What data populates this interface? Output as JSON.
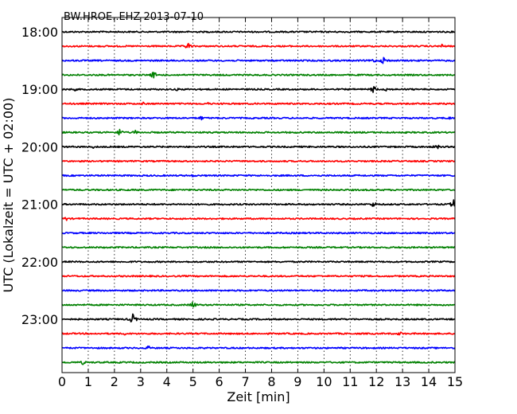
{
  "chart_data": {
    "type": "line",
    "title": "BW.HROE..EHZ 2013-07-10",
    "xlabel": "Zeit  [min]",
    "ylabel": "UTC (Lokalzeit = UTC + 02:00)",
    "xlim": [
      0,
      15
    ],
    "x_ticks": [
      "0",
      "1",
      "2",
      "3",
      "4",
      "5",
      "6",
      "7",
      "8",
      "9",
      "10",
      "11",
      "12",
      "13",
      "14",
      "15"
    ],
    "y_tick_labels": [
      "18:00",
      "19:00",
      "20:00",
      "21:00",
      "22:00",
      "23:00"
    ],
    "grid": "vertical dotted",
    "color_cycle": [
      "#000000",
      "#ff0000",
      "#0000ff",
      "#008000"
    ],
    "traces": [
      {
        "start": "18:00",
        "color": "#000000",
        "events": []
      },
      {
        "start": "18:15",
        "color": "#ff0000",
        "events": [
          {
            "t": 4.8,
            "amp": 5
          },
          {
            "t": 14.5,
            "amp": 3
          }
        ]
      },
      {
        "start": "18:30",
        "color": "#0000ff",
        "events": [
          {
            "t": 12.3,
            "amp": 6
          },
          {
            "t": 11.9,
            "amp": 3
          }
        ]
      },
      {
        "start": "18:45",
        "color": "#008000",
        "events": [
          {
            "t": 3.5,
            "amp": 5
          }
        ]
      },
      {
        "start": "19:00",
        "color": "#000000",
        "events": [
          {
            "t": 11.9,
            "amp": 5
          },
          {
            "t": 12.4,
            "amp": 3
          },
          {
            "t": 0.5,
            "amp": 2
          },
          {
            "t": 4.4,
            "amp": 2
          }
        ]
      },
      {
        "start": "19:15",
        "color": "#ff0000",
        "events": [
          {
            "t": 3.1,
            "amp": 2
          },
          {
            "t": 5.6,
            "amp": 2
          }
        ]
      },
      {
        "start": "19:30",
        "color": "#0000ff",
        "events": [
          {
            "t": 5.3,
            "amp": 3
          },
          {
            "t": 14.8,
            "amp": 2
          }
        ]
      },
      {
        "start": "19:45",
        "color": "#008000",
        "events": [
          {
            "t": 2.2,
            "amp": 5
          },
          {
            "t": 2.8,
            "amp": 3
          }
        ]
      },
      {
        "start": "20:00",
        "color": "#000000",
        "events": [
          {
            "t": 14.3,
            "amp": 4
          },
          {
            "t": 1.2,
            "amp": 2
          }
        ]
      },
      {
        "start": "20:15",
        "color": "#ff0000",
        "events": []
      },
      {
        "start": "20:30",
        "color": "#0000ff",
        "events": [
          {
            "t": 5.0,
            "amp": 2
          }
        ]
      },
      {
        "start": "20:45",
        "color": "#008000",
        "events": []
      },
      {
        "start": "21:00",
        "color": "#000000",
        "events": [
          {
            "t": 11.9,
            "amp": 4
          },
          {
            "t": 14.95,
            "amp": 6
          }
        ]
      },
      {
        "start": "21:15",
        "color": "#ff0000",
        "events": [
          {
            "t": 0.15,
            "amp": 3
          }
        ]
      },
      {
        "start": "21:30",
        "color": "#0000ff",
        "events": []
      },
      {
        "start": "21:45",
        "color": "#008000",
        "events": []
      },
      {
        "start": "22:00",
        "color": "#000000",
        "events": []
      },
      {
        "start": "22:15",
        "color": "#ff0000",
        "events": []
      },
      {
        "start": "22:30",
        "color": "#0000ff",
        "events": []
      },
      {
        "start": "22:45",
        "color": "#008000",
        "events": [
          {
            "t": 5.0,
            "amp": 5
          }
        ]
      },
      {
        "start": "23:00",
        "color": "#000000",
        "events": [
          {
            "t": 2.7,
            "amp": 7
          },
          {
            "t": 10.4,
            "amp": 2
          }
        ]
      },
      {
        "start": "23:15",
        "color": "#ff0000",
        "events": [
          {
            "t": 12.9,
            "amp": 3
          },
          {
            "t": 2.4,
            "amp": 2
          }
        ]
      },
      {
        "start": "23:30",
        "color": "#0000ff",
        "events": [
          {
            "t": 3.3,
            "amp": 3
          }
        ]
      },
      {
        "start": "23:45",
        "color": "#008000",
        "events": [
          {
            "t": 0.8,
            "amp": 3
          }
        ]
      }
    ]
  }
}
